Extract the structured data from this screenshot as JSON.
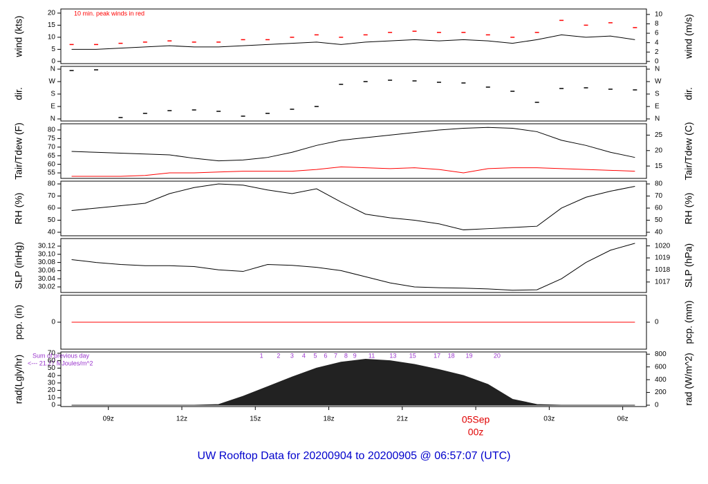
{
  "title": "UW Rooftop Data for 20200904  to  20200905 @ 06:57:07  (UTC)",
  "chart_data": [
    {
      "type": "line",
      "ylabel": "wind (kts)",
      "y2label": "wind (m/s)",
      "annotation": "10 min. peak winds in red",
      "x": [
        7.5,
        8.5,
        9.5,
        10.5,
        11.5,
        12.5,
        13.5,
        14.5,
        15.5,
        16.5,
        17.5,
        18.5,
        19.5,
        20.5,
        21.5,
        22.5,
        23.5,
        24.5,
        25.5,
        26.5,
        27.5,
        28.5,
        29.5,
        30.5
      ],
      "ylim": [
        -0.9,
        21.7
      ],
      "yticks": [
        0,
        5,
        10,
        15,
        20
      ],
      "y2lim": [
        -0.46,
        11.16
      ],
      "y2ticks": [
        0,
        2,
        4,
        6,
        8,
        10
      ],
      "series": [
        {
          "color": "#000000",
          "style": "line",
          "values": [
            5,
            5,
            5.5,
            6,
            6.5,
            6,
            6,
            6.5,
            7,
            7.5,
            8,
            7,
            8,
            8.5,
            9,
            8.5,
            9,
            8.5,
            7.5,
            9,
            11,
            10,
            10.5,
            9
          ]
        },
        {
          "color": "#ff0000",
          "style": "dash",
          "values": [
            7,
            7,
            7.5,
            8,
            8.5,
            8,
            8,
            9,
            9,
            10,
            11,
            10,
            11,
            12,
            12.5,
            12,
            12,
            11,
            10,
            12,
            17,
            15,
            16,
            14
          ]
        }
      ]
    },
    {
      "type": "scatter",
      "ylabel": "dir.",
      "y2label": "dir.",
      "x": [
        7.5,
        8.5,
        9.5,
        10.5,
        11.5,
        12.5,
        13.5,
        14.5,
        15.5,
        16.5,
        17.5,
        18.5,
        19.5,
        20.5,
        21.5,
        22.5,
        23.5,
        24.5,
        25.5,
        26.5,
        27.5,
        28.5,
        29.5,
        30.5
      ],
      "ylim": [
        -15,
        380
      ],
      "yticks": [
        {
          "value": 0,
          "label": "N"
        },
        {
          "value": 90,
          "label": "E"
        },
        {
          "value": 180,
          "label": "S"
        },
        {
          "value": 270,
          "label": "W"
        },
        {
          "value": 360,
          "label": "N"
        }
      ],
      "y2lim": [
        -15,
        380
      ],
      "y2ticks": [
        {
          "value": 0,
          "label": "N"
        },
        {
          "value": 90,
          "label": "E"
        },
        {
          "value": 180,
          "label": "S"
        },
        {
          "value": 270,
          "label": "W"
        },
        {
          "value": 360,
          "label": "N"
        }
      ],
      "series": [
        {
          "color": "#000000",
          "style": "dash",
          "values": [
            350,
            355,
            10,
            40,
            60,
            65,
            55,
            20,
            40,
            70,
            90,
            250,
            270,
            280,
            275,
            265,
            260,
            230,
            200,
            120,
            220,
            225,
            215,
            210
          ]
        }
      ]
    },
    {
      "type": "line",
      "ylabel": "Tair/Tdew (F)",
      "y2label": "Tair/Tdew (C)",
      "x": [
        7.5,
        8.5,
        9.5,
        10.5,
        11.5,
        12.5,
        13.5,
        14.5,
        15.5,
        16.5,
        17.5,
        18.5,
        19.5,
        20.5,
        21.5,
        22.5,
        23.5,
        24.5,
        25.5,
        26.5,
        27.5,
        28.5,
        29.5,
        30.5
      ],
      "ylim": [
        51.8,
        83.6
      ],
      "yticks": [
        55,
        60,
        65,
        70,
        75,
        80
      ],
      "y2lim": [
        11,
        28.67
      ],
      "y2ticks": [
        15,
        20,
        25
      ],
      "series": [
        {
          "color": "#000000",
          "style": "line",
          "values": [
            67.5,
            67,
            66.5,
            66,
            65.5,
            63.5,
            62,
            62.5,
            64,
            67,
            71,
            74,
            75.5,
            77,
            78.5,
            80,
            81,
            81.5,
            81,
            79,
            74,
            71,
            67,
            64
          ]
        },
        {
          "color": "#ff0000",
          "style": "line",
          "values": [
            53,
            53,
            53,
            53.5,
            55,
            55,
            55.5,
            56,
            56,
            56,
            57,
            58.5,
            58,
            57.5,
            58,
            57,
            55,
            57.5,
            58,
            58,
            57.5,
            57,
            56.5,
            56
          ]
        }
      ]
    },
    {
      "type": "line",
      "ylabel": "RH (%)",
      "y2label": "RH (%)",
      "x": [
        7.5,
        8.5,
        9.5,
        10.5,
        11.5,
        12.5,
        13.5,
        14.5,
        15.5,
        16.5,
        17.5,
        18.5,
        19.5,
        20.5,
        21.5,
        22.5,
        23.5,
        24.5,
        25.5,
        26.5,
        27.5,
        28.5,
        29.5,
        30.5
      ],
      "ylim": [
        37.1,
        82.3
      ],
      "yticks": [
        40,
        50,
        60,
        70,
        80
      ],
      "y2lim": [
        37.1,
        82.3
      ],
      "y2ticks": [
        40,
        50,
        60,
        70,
        80
      ],
      "series": [
        {
          "color": "#000000",
          "style": "line",
          "values": [
            58,
            60,
            62,
            64,
            72,
            77,
            80,
            79,
            75,
            72,
            76,
            65,
            55,
            52,
            50,
            47,
            42,
            43,
            44,
            45,
            60,
            69,
            74,
            78
          ]
        }
      ]
    },
    {
      "type": "line",
      "ylabel": "SLP (inHg)",
      "y2label": "SLP (hPa)",
      "x": [
        7.5,
        8.5,
        9.5,
        10.5,
        11.5,
        12.5,
        13.5,
        14.5,
        15.5,
        16.5,
        17.5,
        18.5,
        19.5,
        20.5,
        21.5,
        22.5,
        23.5,
        24.5,
        25.5,
        26.5,
        27.5,
        28.5,
        29.5,
        30.5
      ],
      "ylim": [
        30.0064,
        30.1386
      ],
      "yticks": [
        30.02,
        30.04,
        30.06,
        30.08,
        {
          "value": 30.1,
          "label": "30.10"
        },
        30.12
      ],
      "y2lim": [
        1016.13,
        1020.61
      ],
      "y2ticks": [
        1017,
        1018,
        1019,
        1020
      ],
      "series": [
        {
          "color": "#000000",
          "style": "line",
          "values": [
            30.087,
            30.08,
            30.075,
            30.072,
            30.072,
            30.07,
            30.062,
            30.058,
            30.075,
            30.073,
            30.068,
            30.06,
            30.045,
            30.03,
            30.02,
            30.018,
            30.017,
            30.015,
            30.012,
            30.013,
            30.04,
            30.08,
            30.11,
            30.127
          ]
        }
      ]
    },
    {
      "type": "line",
      "ylabel": "pcp. (in)",
      "y2label": "pcp. (mm)",
      "x": [
        7.5,
        8.5,
        9.5,
        10.5,
        11.5,
        12.5,
        13.5,
        14.5,
        15.5,
        16.5,
        17.5,
        18.5,
        19.5,
        20.5,
        21.5,
        22.5,
        23.5,
        24.5,
        25.5,
        26.5,
        27.5,
        28.5,
        29.5,
        30.5
      ],
      "ylim": [
        -1,
        1
      ],
      "yticks": [
        0
      ],
      "y2lim": [
        -25.4,
        25.4
      ],
      "y2ticks": [
        0
      ],
      "series": [
        {
          "color": "#ff0000",
          "style": "line",
          "values": [
            0,
            0,
            0,
            0,
            0,
            0,
            0,
            0,
            0,
            0,
            0,
            0,
            0,
            0,
            0,
            0,
            0,
            0,
            0,
            0,
            0,
            0,
            0,
            0
          ]
        }
      ]
    },
    {
      "type": "area",
      "ylabel": "rad(Lgly/hr)",
      "y2label": "rad (W/m^2)",
      "annotations": [
        "Sum of previous day",
        "<--- 21.27 MJoules/m^2"
      ],
      "hour_marks": [
        {
          "x": 15.25,
          "label": "1"
        },
        {
          "x": 15.95,
          "label": "2"
        },
        {
          "x": 16.5,
          "label": "3"
        },
        {
          "x": 16.98,
          "label": "4"
        },
        {
          "x": 17.45,
          "label": "5"
        },
        {
          "x": 17.87,
          "label": "6"
        },
        {
          "x": 18.28,
          "label": "7"
        },
        {
          "x": 18.7,
          "label": "8"
        },
        {
          "x": 19.06,
          "label": "9"
        },
        {
          "x": 19.75,
          "label": "11"
        },
        {
          "x": 20.62,
          "label": "13"
        },
        {
          "x": 21.42,
          "label": "15"
        },
        {
          "x": 22.42,
          "label": "17"
        },
        {
          "x": 23.0,
          "label": "18"
        },
        {
          "x": 23.73,
          "label": "19"
        },
        {
          "x": 24.87,
          "label": "20"
        }
      ],
      "x": [
        7.5,
        8.5,
        9.5,
        10.5,
        11.5,
        12.5,
        13.5,
        14.5,
        15.5,
        16.5,
        17.5,
        18.5,
        19.5,
        20.5,
        21.5,
        22.5,
        23.5,
        24.5,
        25.5,
        26.5,
        27.5,
        28.5,
        29.5,
        30.5
      ],
      "xlim": [
        7.06,
        30.97
      ],
      "xticks": [
        {
          "value": 9,
          "label": "09z"
        },
        {
          "value": 12,
          "label": "12z"
        },
        {
          "value": 15,
          "label": "15z"
        },
        {
          "value": 18,
          "label": "18z"
        },
        {
          "value": 21,
          "label": "21z"
        },
        {
          "value": 24,
          "label": "05Sep",
          "label2": "00z",
          "color": "#e00000"
        },
        {
          "value": 27,
          "label": "03z"
        },
        {
          "value": 30,
          "label": "06z"
        }
      ],
      "ylim": [
        -1.84,
        71.8
      ],
      "yticks": [
        0,
        10,
        20,
        30,
        40,
        50,
        60,
        70
      ],
      "y2lim": [
        -21.4,
        835
      ],
      "y2ticks": [
        0,
        200,
        400,
        600,
        800
      ],
      "series": [
        {
          "color": "#222222",
          "style": "area",
          "values": [
            0,
            0,
            0,
            0,
            0,
            0,
            1,
            12,
            25,
            38,
            50,
            58,
            62,
            60,
            55,
            48,
            40,
            28,
            8,
            1,
            0,
            0,
            0,
            0
          ]
        }
      ]
    }
  ]
}
